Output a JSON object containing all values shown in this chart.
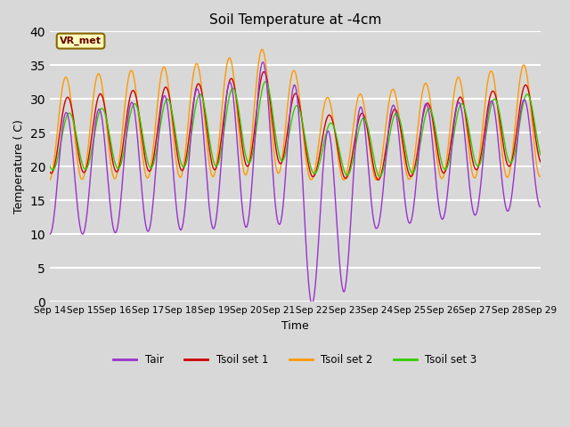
{
  "title": "Soil Temperature at -4cm",
  "xlabel": "Time",
  "ylabel": "Temperature ( C)",
  "ylim": [
    0,
    40
  ],
  "yticks": [
    0,
    5,
    10,
    15,
    20,
    25,
    30,
    35,
    40
  ],
  "bg_color": "#d8d8d8",
  "plot_bg_color": "#d8d8d8",
  "grid_color": "white",
  "annotation_text": "VR_met",
  "annotation_bg": "#ffffbb",
  "annotation_border": "#886600",
  "colors": {
    "Tair": "#9933cc",
    "Tsoil1": "#cc0000",
    "Tsoil2": "#ff9900",
    "Tsoil3": "#33cc00"
  },
  "legend_labels": [
    "Tair",
    "Tsoil set 1",
    "Tsoil set 2",
    "Tsoil set 3"
  ],
  "xtick_labels": [
    "Sep 14",
    "Sep 15",
    "Sep 16",
    "Sep 17",
    "Sep 18",
    "Sep 19",
    "Sep 20",
    "Sep 21",
    "Sep 22",
    "Sep 23",
    "Sep 24",
    "Sep 25",
    "Sep 26",
    "Sep 27",
    "Sep 28",
    "Sep 29"
  ],
  "n_points": 720,
  "days": 15
}
